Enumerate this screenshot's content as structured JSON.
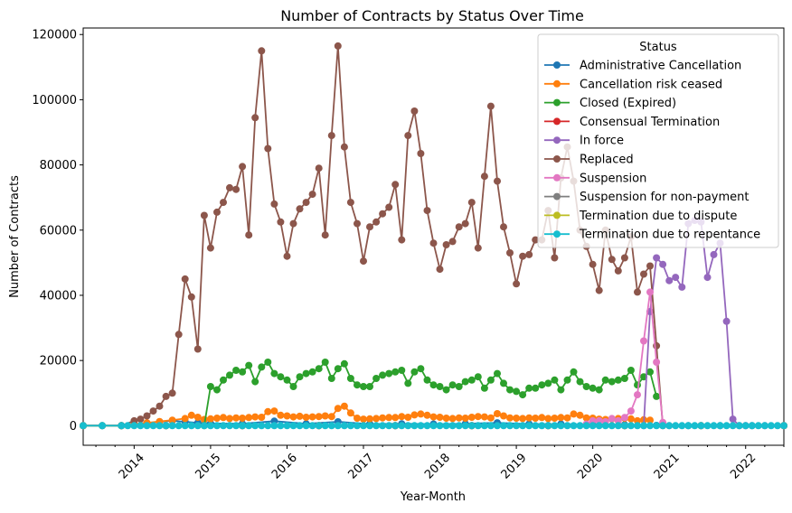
{
  "chart_data": {
    "type": "line",
    "title": "Number of Contracts by Status Over Time",
    "xlabel": "Year-Month",
    "ylabel": "Number of Contracts",
    "ylim": [
      -6000,
      122000
    ],
    "xlim": [
      "2013-05",
      "2022-07"
    ],
    "y_ticks": [
      0,
      20000,
      40000,
      60000,
      80000,
      100000,
      120000
    ],
    "x_ticks": [
      "2014",
      "2015",
      "2016",
      "2017",
      "2018",
      "2019",
      "2020",
      "2021",
      "2022"
    ],
    "legend_title": "Status",
    "legend_position": "upper right",
    "grid": false,
    "series": [
      {
        "name": "Administrative Cancellation",
        "color": "#1f77b4",
        "x": [
          "2013-05",
          "2013-08",
          "2013-11",
          "2014-01",
          "2014-03",
          "2014-05",
          "2014-07",
          "2014-09",
          "2014-11",
          "2015-01",
          "2015-06",
          "2015-11",
          "2016-04",
          "2016-09",
          "2017-02",
          "2017-07",
          "2017-12",
          "2018-05",
          "2018-10",
          "2019-03",
          "2019-08",
          "2020-01",
          "2020-06",
          "2020-11",
          "2021-04",
          "2021-09",
          "2022-02",
          "2022-07"
        ],
        "y": [
          0,
          0,
          0,
          200,
          800,
          1200,
          1500,
          1200,
          900,
          700,
          600,
          1400,
          600,
          1200,
          500,
          600,
          500,
          600,
          900,
          500,
          500,
          400,
          300,
          100,
          0,
          0,
          0,
          0
        ]
      },
      {
        "name": "Cancellation risk ceased",
        "color": "#ff7f0e",
        "x": [
          "2013-11",
          "2014-01",
          "2014-03",
          "2014-05",
          "2014-07",
          "2014-09",
          "2014-10",
          "2014-11",
          "2014-12",
          "2015-01",
          "2015-02",
          "2015-03",
          "2015-04",
          "2015-05",
          "2015-06",
          "2015-07",
          "2015-08",
          "2015-09",
          "2015-10",
          "2015-11",
          "2015-12",
          "2016-01",
          "2016-02",
          "2016-03",
          "2016-04",
          "2016-05",
          "2016-06",
          "2016-07",
          "2016-08",
          "2016-09",
          "2016-10",
          "2016-11",
          "2016-12",
          "2017-01",
          "2017-02",
          "2017-03",
          "2017-04",
          "2017-05",
          "2017-06",
          "2017-07",
          "2017-08",
          "2017-09",
          "2017-10",
          "2017-11",
          "2017-12",
          "2018-01",
          "2018-02",
          "2018-03",
          "2018-04",
          "2018-05",
          "2018-06",
          "2018-07",
          "2018-08",
          "2018-09",
          "2018-10",
          "2018-11",
          "2018-12",
          "2019-01",
          "2019-02",
          "2019-03",
          "2019-04",
          "2019-05",
          "2019-06",
          "2019-07",
          "2019-08",
          "2019-09",
          "2019-10",
          "2019-11",
          "2019-12",
          "2020-01",
          "2020-02",
          "2020-03",
          "2020-04",
          "2020-05",
          "2020-06",
          "2020-07",
          "2020-08",
          "2020-09",
          "2020-10"
        ],
        "y": [
          0,
          500,
          900,
          1300,
          1700,
          2200,
          3200,
          2600,
          1900,
          2100,
          2300,
          2500,
          2200,
          2400,
          2300,
          2500,
          2700,
          2600,
          4300,
          4500,
          3200,
          3000,
          2700,
          2900,
          2600,
          2700,
          2800,
          3000,
          2800,
          5300,
          6000,
          3900,
          2300,
          2000,
          2100,
          2200,
          2400,
          2500,
          2500,
          2800,
          2600,
          3300,
          3600,
          3200,
          2700,
          2600,
          2300,
          2200,
          2400,
          2300,
          2600,
          2800,
          2700,
          2400,
          3700,
          3000,
          2400,
          2300,
          2200,
          2400,
          2300,
          2500,
          2200,
          2300,
          2500,
          2400,
          3600,
          3200,
          2400,
          2300,
          2000,
          1900,
          2100,
          2200,
          2300,
          2100,
          1500,
          1800,
          1700
        ]
      },
      {
        "name": "Closed (Expired)",
        "color": "#2ca02c",
        "x": [
          "2013-05",
          "2013-08",
          "2013-11",
          "2014-06",
          "2014-12",
          "2015-01",
          "2015-02",
          "2015-03",
          "2015-04",
          "2015-05",
          "2015-06",
          "2015-07",
          "2015-08",
          "2015-09",
          "2015-10",
          "2015-11",
          "2015-12",
          "2016-01",
          "2016-02",
          "2016-03",
          "2016-04",
          "2016-05",
          "2016-06",
          "2016-07",
          "2016-08",
          "2016-09",
          "2016-10",
          "2016-11",
          "2016-12",
          "2017-01",
          "2017-02",
          "2017-03",
          "2017-04",
          "2017-05",
          "2017-06",
          "2017-07",
          "2017-08",
          "2017-09",
          "2017-10",
          "2017-11",
          "2017-12",
          "2018-01",
          "2018-02",
          "2018-03",
          "2018-04",
          "2018-05",
          "2018-06",
          "2018-07",
          "2018-08",
          "2018-09",
          "2018-10",
          "2018-11",
          "2018-12",
          "2019-01",
          "2019-02",
          "2019-03",
          "2019-04",
          "2019-05",
          "2019-06",
          "2019-07",
          "2019-08",
          "2019-09",
          "2019-10",
          "2019-11",
          "2019-12",
          "2020-01",
          "2020-02",
          "2020-03",
          "2020-04",
          "2020-05",
          "2020-06",
          "2020-07",
          "2020-08",
          "2020-09",
          "2020-10",
          "2020-11"
        ],
        "y": [
          0,
          0,
          0,
          0,
          0,
          12000,
          11000,
          14000,
          15500,
          17000,
          16500,
          18500,
          13500,
          18000,
          19500,
          16000,
          15000,
          14000,
          12000,
          15000,
          16000,
          16500,
          17500,
          19500,
          14500,
          17500,
          19000,
          14500,
          12500,
          12000,
          12000,
          14500,
          15500,
          16000,
          16500,
          17000,
          13000,
          16500,
          17500,
          14000,
          12500,
          12000,
          11000,
          12500,
          12000,
          13500,
          14000,
          15000,
          11500,
          14000,
          16000,
          13000,
          11000,
          10500,
          9500,
          11500,
          11500,
          12500,
          13000,
          14000,
          11000,
          14000,
          16500,
          13500,
          12000,
          11500,
          11000,
          14000,
          13500,
          14000,
          14500,
          17000,
          12500,
          15000,
          16500,
          9000
        ]
      },
      {
        "name": "Consensual Termination",
        "color": "#d62728",
        "x": [
          "2013-05",
          "2014-06",
          "2015-06",
          "2016-06",
          "2017-06",
          "2018-06",
          "2019-06",
          "2020-06",
          "2021-06",
          "2022-07"
        ],
        "y": [
          0,
          0,
          0,
          0,
          0,
          0,
          0,
          0,
          0,
          0
        ]
      },
      {
        "name": "In force",
        "color": "#9467bd",
        "x": [
          "2013-05",
          "2014-06",
          "2015-06",
          "2016-06",
          "2017-06",
          "2018-06",
          "2019-06",
          "2020-06",
          "2020-09",
          "2020-10",
          "2020-11",
          "2020-12",
          "2021-01",
          "2021-02",
          "2021-03",
          "2021-04",
          "2021-05",
          "2021-06",
          "2021-07",
          "2021-08",
          "2021-09",
          "2021-10",
          "2021-11",
          "2021-12",
          "2022-01",
          "2022-04",
          "2022-07"
        ],
        "y": [
          0,
          0,
          0,
          0,
          0,
          0,
          0,
          0,
          0,
          35000,
          51500,
          49500,
          44500,
          45500,
          42500,
          62000,
          63000,
          62500,
          45500,
          52500,
          56000,
          32000,
          2000,
          0,
          0,
          0,
          0
        ]
      },
      {
        "name": "Replaced",
        "color": "#8c564b",
        "x": [
          "2013-11",
          "2014-01",
          "2014-02",
          "2014-03",
          "2014-04",
          "2014-05",
          "2014-06",
          "2014-07",
          "2014-08",
          "2014-09",
          "2014-10",
          "2014-11",
          "2014-12",
          "2015-01",
          "2015-02",
          "2015-03",
          "2015-04",
          "2015-05",
          "2015-06",
          "2015-07",
          "2015-08",
          "2015-09",
          "2015-10",
          "2015-11",
          "2015-12",
          "2016-01",
          "2016-02",
          "2016-03",
          "2016-04",
          "2016-05",
          "2016-06",
          "2016-07",
          "2016-08",
          "2016-09",
          "2016-10",
          "2016-11",
          "2016-12",
          "2017-01",
          "2017-02",
          "2017-03",
          "2017-04",
          "2017-05",
          "2017-06",
          "2017-07",
          "2017-08",
          "2017-09",
          "2017-10",
          "2017-11",
          "2017-12",
          "2018-01",
          "2018-02",
          "2018-03",
          "2018-04",
          "2018-05",
          "2018-06",
          "2018-07",
          "2018-08",
          "2018-09",
          "2018-10",
          "2018-11",
          "2018-12",
          "2019-01",
          "2019-02",
          "2019-03",
          "2019-04",
          "2019-05",
          "2019-06",
          "2019-07",
          "2019-08",
          "2019-09",
          "2019-10",
          "2019-11",
          "2019-12",
          "2020-01",
          "2020-02",
          "2020-03",
          "2020-04",
          "2020-05",
          "2020-06",
          "2020-07",
          "2020-08",
          "2020-09",
          "2020-10",
          "2020-11",
          "2020-12"
        ],
        "y": [
          0,
          1500,
          2000,
          3000,
          4500,
          6000,
          9000,
          10000,
          28000,
          45000,
          39500,
          23500,
          64500,
          54500,
          65500,
          68500,
          73000,
          72500,
          79500,
          58500,
          94500,
          115000,
          85000,
          68000,
          62500,
          52000,
          62000,
          66500,
          68500,
          71000,
          79000,
          58500,
          89000,
          116500,
          85500,
          68500,
          62000,
          50500,
          61000,
          62500,
          65000,
          67000,
          74000,
          57000,
          89000,
          96500,
          83500,
          66000,
          56000,
          48000,
          55500,
          56500,
          61000,
          62000,
          68500,
          54500,
          76500,
          98000,
          75000,
          61000,
          53000,
          43500,
          52000,
          52500,
          57000,
          57000,
          66000,
          51500,
          76000,
          85500,
          75000,
          60000,
          55000,
          49500,
          41500,
          60000,
          51000,
          47500,
          51500,
          58000,
          41000,
          46500,
          49000,
          24500,
          0
        ]
      },
      {
        "name": "Suspension",
        "color": "#e377c2",
        "x": [
          "2013-05",
          "2014-06",
          "2015-06",
          "2016-06",
          "2017-06",
          "2018-06",
          "2019-06",
          "2019-12",
          "2020-01",
          "2020-02",
          "2020-03",
          "2020-04",
          "2020-05",
          "2020-06",
          "2020-07",
          "2020-08",
          "2020-09",
          "2020-10",
          "2020-11",
          "2020-12",
          "2021-01",
          "2021-06",
          "2022-01",
          "2022-07"
        ],
        "y": [
          0,
          0,
          0,
          0,
          0,
          0,
          0,
          500,
          1500,
          1500,
          1200,
          2200,
          1500,
          2500,
          4500,
          9500,
          26000,
          41000,
          19500,
          1000,
          0,
          0,
          0,
          0
        ]
      },
      {
        "name": "Suspension for non-payment",
        "color": "#7f7f7f",
        "x": [
          "2013-05",
          "2014-06",
          "2015-06",
          "2016-06",
          "2017-06",
          "2018-06",
          "2019-06",
          "2020-06",
          "2021-06",
          "2022-07"
        ],
        "y": [
          0,
          0,
          0,
          0,
          0,
          0,
          0,
          0,
          0,
          0
        ]
      },
      {
        "name": "Termination due to dispute",
        "color": "#bcbd22",
        "x": [
          "2013-05",
          "2014-06",
          "2015-06",
          "2016-06",
          "2017-06",
          "2018-06",
          "2019-06",
          "2020-06",
          "2021-06",
          "2022-07"
        ],
        "y": [
          0,
          0,
          0,
          0,
          0,
          0,
          0,
          0,
          0,
          0
        ]
      },
      {
        "name": "Termination due to repentance",
        "color": "#17becf",
        "x": [
          "2013-05",
          "2013-08",
          "2013-11",
          "2013-12",
          "2014-01",
          "2014-02",
          "2014-03",
          "2014-04",
          "2014-05",
          "2014-06",
          "2014-07",
          "2014-08",
          "2014-09",
          "2014-10",
          "2014-11",
          "2014-12",
          "2015-01",
          "2015-02",
          "2015-03",
          "2015-04",
          "2015-05",
          "2015-06",
          "2015-07",
          "2015-08",
          "2015-09",
          "2015-10",
          "2015-11",
          "2015-12",
          "2016-01",
          "2016-02",
          "2016-03",
          "2016-04",
          "2016-05",
          "2016-06",
          "2016-07",
          "2016-08",
          "2016-09",
          "2016-10",
          "2016-11",
          "2016-12",
          "2017-01",
          "2017-02",
          "2017-03",
          "2017-04",
          "2017-05",
          "2017-06",
          "2017-07",
          "2017-08",
          "2017-09",
          "2017-10",
          "2017-11",
          "2017-12",
          "2018-01",
          "2018-02",
          "2018-03",
          "2018-04",
          "2018-05",
          "2018-06",
          "2018-07",
          "2018-08",
          "2018-09",
          "2018-10",
          "2018-11",
          "2018-12",
          "2019-01",
          "2019-02",
          "2019-03",
          "2019-04",
          "2019-05",
          "2019-06",
          "2019-07",
          "2019-08",
          "2019-09",
          "2019-10",
          "2019-11",
          "2019-12",
          "2020-01",
          "2020-02",
          "2020-03",
          "2020-04",
          "2020-05",
          "2020-06",
          "2020-07",
          "2020-08",
          "2020-09",
          "2020-10",
          "2020-11",
          "2020-12",
          "2021-01",
          "2021-02",
          "2021-03",
          "2021-04",
          "2021-05",
          "2021-06",
          "2021-07",
          "2021-08",
          "2021-09",
          "2021-10",
          "2021-11",
          "2021-12",
          "2022-01",
          "2022-02",
          "2022-03",
          "2022-04",
          "2022-05",
          "2022-06",
          "2022-07"
        ],
        "y": [
          0,
          0,
          0,
          0,
          0,
          0,
          0,
          0,
          0,
          0,
          0,
          0,
          0,
          0,
          0,
          0,
          0,
          0,
          0,
          0,
          0,
          0,
          0,
          0,
          0,
          0,
          0,
          0,
          0,
          0,
          0,
          0,
          0,
          0,
          0,
          0,
          0,
          0,
          0,
          0,
          0,
          0,
          0,
          0,
          0,
          0,
          0,
          0,
          0,
          0,
          0,
          0,
          0,
          0,
          0,
          0,
          0,
          0,
          0,
          0,
          0,
          0,
          0,
          0,
          0,
          0,
          0,
          0,
          0,
          0,
          0,
          0,
          0,
          0,
          0,
          0,
          0,
          0,
          0,
          0,
          0,
          0,
          0,
          0,
          0,
          0,
          0,
          0,
          0,
          0,
          0,
          0,
          0,
          0,
          0,
          0,
          0,
          0,
          0,
          0,
          0,
          0,
          0,
          0,
          0,
          0,
          0
        ]
      }
    ]
  }
}
